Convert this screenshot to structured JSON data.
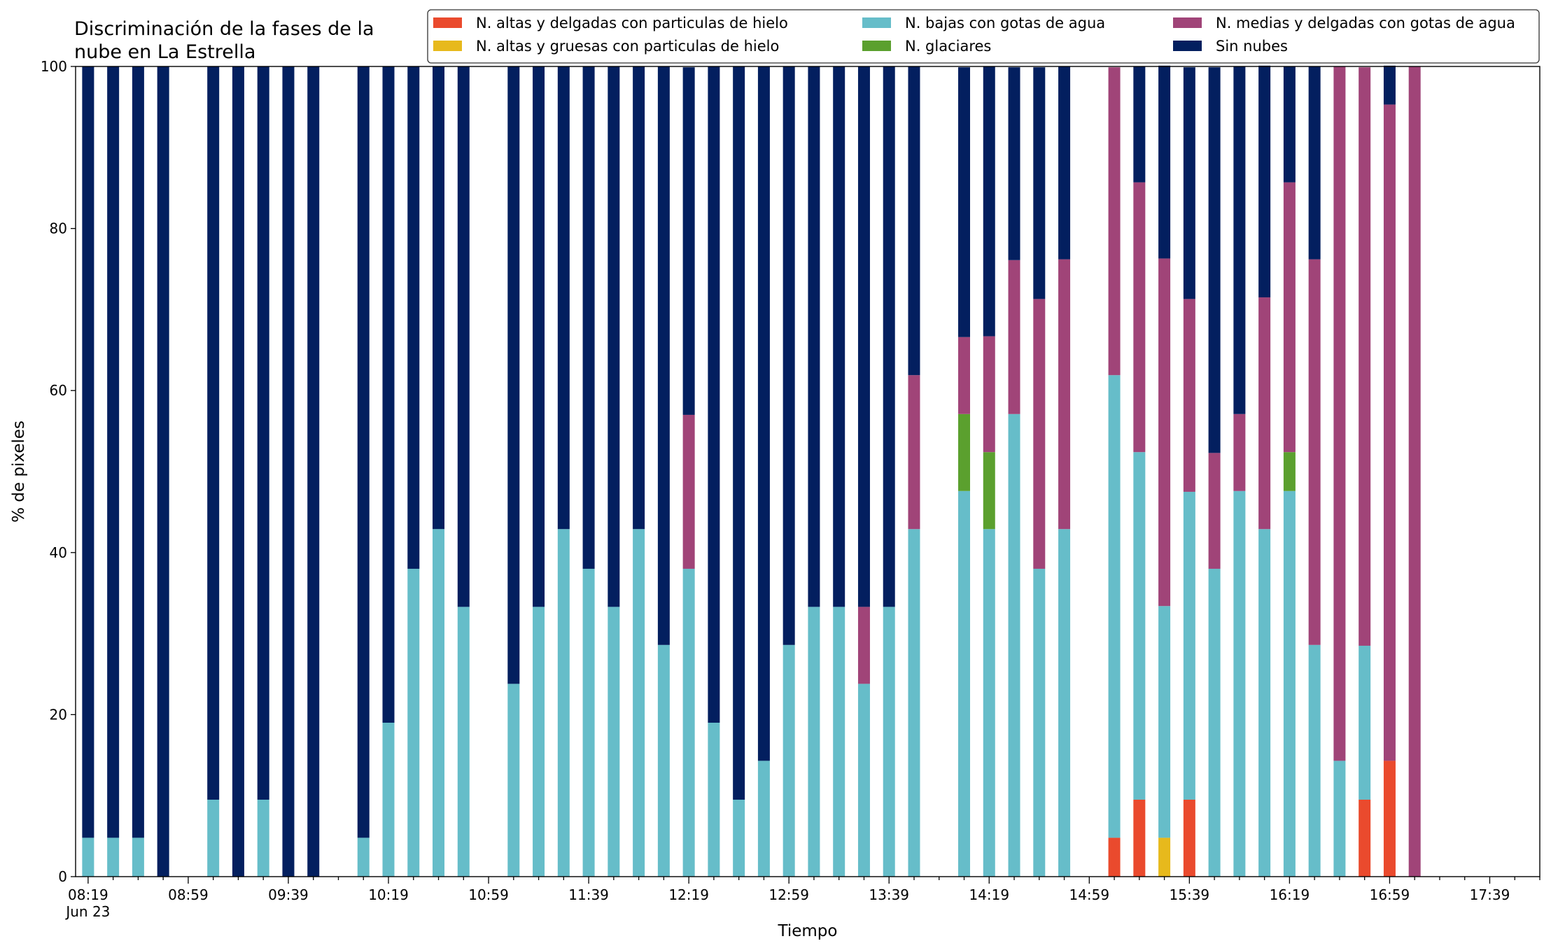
{
  "chart_data": {
    "type": "bar",
    "stacked": true,
    "title_lines": [
      "Discriminación de la fases de la",
      "nube en La Estrella"
    ],
    "xlabel": "Tiempo",
    "ylabel": "% de pixeles",
    "ylim": [
      0,
      100
    ],
    "yticks": [
      0,
      20,
      40,
      60,
      80,
      100
    ],
    "xlim": [
      "08:14",
      "17:59"
    ],
    "x_tick_labels": [
      "08:19",
      "08:59",
      "09:39",
      "10:19",
      "10:59",
      "11:39",
      "12:19",
      "12:59",
      "13:39",
      "14:19",
      "14:59",
      "15:39",
      "16:19",
      "16:59",
      "17:39"
    ],
    "x_date_label": "Jun 23",
    "grid": false,
    "legend_position": "top-right",
    "categories": [
      "08:19",
      "08:29",
      "08:39",
      "08:49",
      "09:09",
      "09:19",
      "09:29",
      "09:39",
      "09:49",
      "10:09",
      "10:19",
      "10:29",
      "10:39",
      "10:49",
      "11:09",
      "11:19",
      "11:29",
      "11:39",
      "11:49",
      "11:59",
      "12:09",
      "12:19",
      "12:29",
      "12:39",
      "12:49",
      "12:59",
      "13:09",
      "13:19",
      "13:29",
      "13:39",
      "13:49",
      "14:09",
      "14:19",
      "14:29",
      "14:39",
      "14:49",
      "15:09",
      "15:19",
      "15:29",
      "15:39",
      "15:49",
      "15:59",
      "16:09",
      "16:19",
      "16:29",
      "16:39",
      "16:49",
      "16:59",
      "17:09"
    ],
    "series": [
      {
        "name": "N. altas y delgadas con particulas de hielo",
        "color": "#ea4a2d",
        "values": [
          0,
          0,
          0,
          0,
          0,
          0,
          0,
          0,
          0,
          0,
          0,
          0,
          0,
          0,
          0,
          0,
          0,
          0,
          0,
          0,
          0,
          0,
          0,
          0,
          0,
          0,
          0,
          0,
          0,
          0,
          0,
          0,
          0,
          0,
          0,
          0,
          4.8,
          9.5,
          0,
          9.5,
          0,
          0,
          0,
          0,
          0,
          0,
          9.5,
          14.3,
          0
        ]
      },
      {
        "name": "N. altas y gruesas con particulas de hielo",
        "color": "#e7b91c",
        "values": [
          0,
          0,
          0,
          0,
          0,
          0,
          0,
          0,
          0,
          0,
          0,
          0,
          0,
          0,
          0,
          0,
          0,
          0,
          0,
          0,
          0,
          0,
          0,
          0,
          0,
          0,
          0,
          0,
          0,
          0,
          0,
          0,
          0,
          0,
          0,
          0,
          0,
          0,
          4.8,
          0,
          0,
          0,
          0,
          0,
          0,
          0,
          0,
          0,
          0
        ]
      },
      {
        "name": "N. bajas con gotas de agua",
        "color": "#66bdc9",
        "values": [
          4.8,
          4.8,
          4.8,
          0,
          9.5,
          0,
          9.5,
          0,
          0,
          4.8,
          19,
          38,
          42.9,
          33.3,
          23.8,
          33.3,
          42.9,
          38,
          33.3,
          42.9,
          28.6,
          38,
          19,
          9.5,
          14.3,
          28.6,
          33.3,
          33.3,
          23.8,
          33.3,
          42.9,
          47.6,
          42.9,
          57.1,
          38,
          42.9,
          57.1,
          42.9,
          28.6,
          38,
          38,
          47.6,
          42.9,
          47.6,
          28.6,
          14.3,
          19,
          0,
          0
        ]
      },
      {
        "name": "N. glaciares",
        "color": "#5ba02e",
        "values": [
          0,
          0,
          0,
          0,
          0,
          0,
          0,
          0,
          0,
          0,
          0,
          0,
          0,
          0,
          0,
          0,
          0,
          0,
          0,
          0,
          0,
          0,
          0,
          0,
          0,
          0,
          0,
          0,
          0,
          0,
          0,
          9.5,
          9.5,
          0,
          0,
          0,
          0,
          0,
          0,
          0,
          0,
          0,
          0,
          4.8,
          0,
          0,
          0,
          0,
          0
        ]
      },
      {
        "name": "N. medias y delgadas con gotas de agua",
        "color": "#a04478",
        "values": [
          0,
          0,
          0,
          0,
          0,
          0,
          0,
          0,
          0,
          0,
          0,
          0,
          0,
          0,
          0,
          0,
          0,
          0,
          0,
          0,
          0,
          19,
          0,
          0,
          0,
          0,
          0,
          0,
          9.5,
          0,
          19,
          9.5,
          14.3,
          19,
          33.3,
          33.3,
          38,
          33.3,
          42.9,
          23.8,
          14.3,
          9.5,
          28.6,
          33.3,
          47.6,
          85.7,
          71.4,
          81,
          100
        ]
      },
      {
        "name": "Sin nubes",
        "color": "#031f5f",
        "values": [
          95.2,
          95.2,
          95.2,
          100,
          90.5,
          100,
          90.5,
          100,
          100,
          95.2,
          81,
          62,
          57.1,
          66.7,
          76.2,
          66.7,
          57.1,
          62,
          66.7,
          57.1,
          71.4,
          42.9,
          81,
          90.5,
          85.7,
          71.4,
          66.7,
          66.7,
          66.7,
          66.7,
          38.1,
          33.3,
          33.3,
          23.8,
          28.6,
          23.8,
          0,
          14.3,
          23.8,
          28.6,
          47.6,
          42.9,
          28.6,
          14.3,
          23.8,
          0,
          0,
          4.8,
          0
        ]
      }
    ]
  }
}
